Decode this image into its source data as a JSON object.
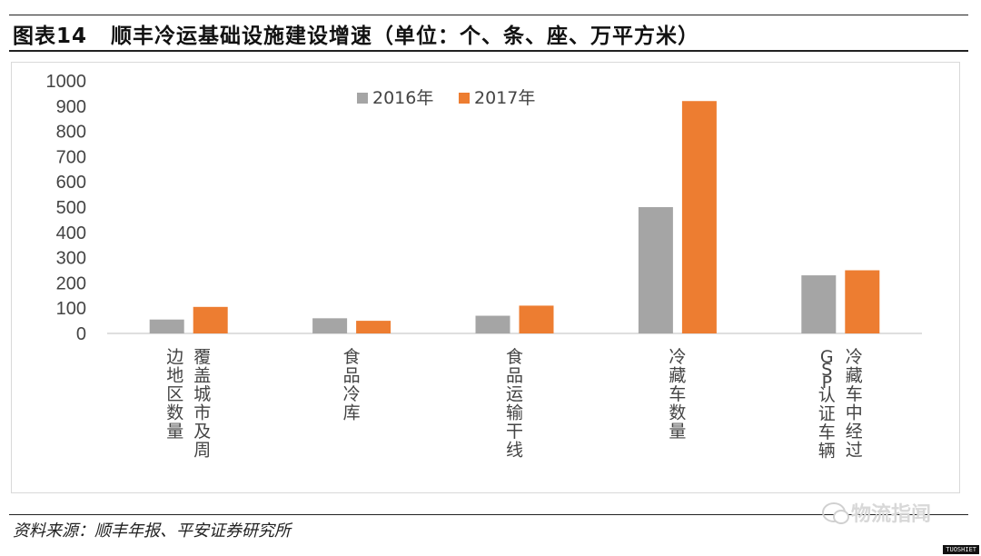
{
  "header": {
    "figure_number": "图表14",
    "title": "顺丰冷运基础设施建设增速（单位：个、条、座、万平方米）"
  },
  "footer": {
    "source": "资料来源：顺丰年报、平安证券研究所",
    "watermark": "物流指闻",
    "corner_tag": "TUOSHIET"
  },
  "chart_data": {
    "type": "bar",
    "title": "",
    "xlabel": "",
    "ylabel": "",
    "ylim": [
      0,
      1000
    ],
    "yticks": [
      0,
      100,
      200,
      300,
      400,
      500,
      600,
      700,
      800,
      900,
      1000
    ],
    "grid": false,
    "legend_position": "top",
    "categories": [
      [
        "边地区数量",
        "覆盖城市及周"
      ],
      [
        "食品冷库"
      ],
      [
        "食品运输干线"
      ],
      [
        "冷藏车数量"
      ],
      [
        "GSP认证车辆",
        "冷藏车中经过"
      ]
    ],
    "series": [
      {
        "name": "2016年",
        "color": "#a5a5a5",
        "values": [
          55,
          60,
          70,
          500,
          230
        ]
      },
      {
        "name": "2017年",
        "color": "#ed7d31",
        "values": [
          105,
          50,
          110,
          920,
          250
        ]
      }
    ]
  }
}
